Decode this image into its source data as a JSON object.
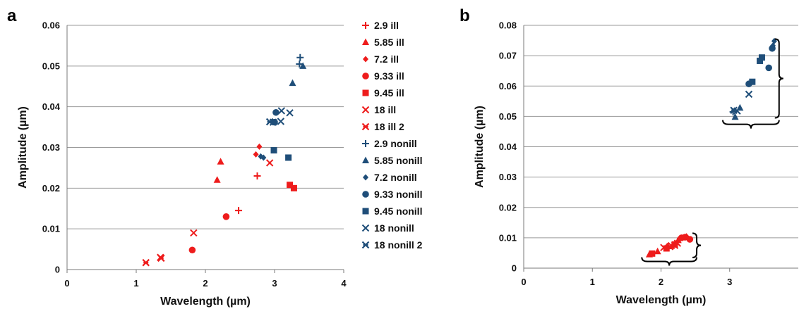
{
  "colors": {
    "ill": "#ee1c1c",
    "nonill": "#1f4e79"
  },
  "chart_data": [
    {
      "panel_label": "a",
      "type": "scatter",
      "xlabel": "Wavelength (µm)",
      "ylabel": "Amplitude (µm)",
      "xlim": [
        0,
        4
      ],
      "ylim": [
        0,
        0.06
      ],
      "xticks": [
        0,
        1,
        2,
        3,
        4
      ],
      "yticks": [
        0,
        0.01,
        0.02,
        0.03,
        0.04,
        0.05,
        0.06
      ],
      "grid": "horizontal",
      "legend": "right",
      "series": [
        {
          "name": "2.9 ill",
          "color": "ill",
          "marker": "plus",
          "points": [
            [
              2.75,
              0.023
            ],
            [
              2.48,
              0.0145
            ]
          ]
        },
        {
          "name": "5.85 ill",
          "color": "ill",
          "marker": "triangle",
          "points": [
            [
              2.22,
              0.0265
            ],
            [
              2.17,
              0.022
            ]
          ]
        },
        {
          "name": "7.2 ill",
          "color": "ill",
          "marker": "diamond",
          "points": [
            [
              2.78,
              0.0302
            ],
            [
              2.73,
              0.0283
            ]
          ]
        },
        {
          "name": "9.33 ill",
          "color": "ill",
          "marker": "circle",
          "points": [
            [
              2.3,
              0.013
            ],
            [
              1.81,
              0.0048
            ]
          ]
        },
        {
          "name": "9.45 ill",
          "color": "ill",
          "marker": "square",
          "points": [
            [
              3.22,
              0.0208
            ],
            [
              3.28,
              0.02
            ]
          ]
        },
        {
          "name": "18 ill",
          "color": "ill",
          "marker": "x",
          "points": [
            [
              2.93,
              0.0262
            ],
            [
              1.83,
              0.009
            ],
            [
              1.35,
              0.003
            ]
          ]
        },
        {
          "name": "18 ill 2",
          "color": "ill",
          "marker": "star",
          "points": [
            [
              1.14,
              0.0017
            ],
            [
              1.36,
              0.0028
            ]
          ]
        },
        {
          "name": "2.9 nonill",
          "color": "nonill",
          "marker": "plus",
          "points": [
            [
              3.37,
              0.0521
            ],
            [
              3.36,
              0.0505
            ]
          ]
        },
        {
          "name": "5.85 nonill",
          "color": "nonill",
          "marker": "triangle",
          "points": [
            [
              3.41,
              0.05
            ],
            [
              3.26,
              0.0458
            ]
          ]
        },
        {
          "name": "7.2 nonill",
          "color": "nonill",
          "marker": "diamond",
          "points": [
            [
              2.8,
              0.0278
            ],
            [
              2.84,
              0.0275
            ]
          ]
        },
        {
          "name": "9.33 nonill",
          "color": "nonill",
          "marker": "circle",
          "points": [
            [
              3.02,
              0.0386
            ],
            [
              3.0,
              0.0362
            ]
          ]
        },
        {
          "name": "9.45 nonill",
          "color": "nonill",
          "marker": "square",
          "points": [
            [
              2.99,
              0.0293
            ],
            [
              3.2,
              0.0275
            ]
          ]
        },
        {
          "name": "18 nonill",
          "color": "nonill",
          "marker": "x",
          "points": [
            [
              3.1,
              0.039
            ],
            [
              3.22,
              0.0385
            ],
            [
              3.09,
              0.0364
            ]
          ]
        },
        {
          "name": "18 nonill 2",
          "color": "nonill",
          "marker": "star",
          "points": [
            [
              2.93,
              0.0363
            ],
            [
              2.98,
              0.0362
            ]
          ]
        }
      ]
    },
    {
      "panel_label": "b",
      "type": "scatter",
      "xlabel": "Wavelength (µm)",
      "ylabel": "Amplitude (µm)",
      "xlim": [
        0,
        4
      ],
      "ylim": [
        0,
        0.08
      ],
      "xticks": [
        0,
        1,
        2,
        3
      ],
      "yticks": [
        0,
        0.01,
        0.02,
        0.03,
        0.04,
        0.05,
        0.06,
        0.07,
        0.08
      ],
      "grid": "horizontal",
      "legend": "none",
      "series": [
        {
          "color": "ill",
          "marker": "triangle",
          "points": [
            [
              1.83,
              0.0045
            ],
            [
              1.95,
              0.0055
            ],
            [
              2.1,
              0.0072
            ],
            [
              2.25,
              0.0092
            ]
          ]
        },
        {
          "color": "ill",
          "marker": "square",
          "points": [
            [
              1.87,
              0.0048
            ],
            [
              2.08,
              0.0065
            ],
            [
              2.2,
              0.0078
            ]
          ]
        },
        {
          "color": "ill",
          "marker": "circle",
          "points": [
            [
              2.3,
              0.01
            ],
            [
              2.35,
              0.0102
            ],
            [
              2.42,
              0.0095
            ]
          ]
        },
        {
          "color": "ill",
          "marker": "diamond",
          "points": [
            [
              2.27,
              0.0098
            ],
            [
              2.37,
              0.0105
            ]
          ]
        },
        {
          "color": "ill",
          "marker": "x",
          "points": [
            [
              2.04,
              0.0068
            ],
            [
              2.15,
              0.0074
            ],
            [
              2.24,
              0.0082
            ]
          ]
        },
        {
          "color": "ill",
          "marker": "star",
          "points": [
            [
              2.13,
              0.0071
            ],
            [
              2.2,
              0.0075
            ]
          ]
        },
        {
          "color": "nonill",
          "marker": "plus",
          "points": [
            [
              3.05,
              0.0515
            ]
          ]
        },
        {
          "color": "nonill",
          "marker": "triangle",
          "points": [
            [
              3.08,
              0.0498
            ],
            [
              3.15,
              0.0528
            ]
          ]
        },
        {
          "color": "nonill",
          "marker": "circle",
          "points": [
            [
              3.28,
              0.0607
            ],
            [
              3.62,
              0.0724
            ],
            [
              3.57,
              0.066
            ]
          ]
        },
        {
          "color": "nonill",
          "marker": "square",
          "points": [
            [
              3.33,
              0.0614
            ],
            [
              3.44,
              0.0683
            ],
            [
              3.47,
              0.0694
            ]
          ]
        },
        {
          "color": "nonill",
          "marker": "diamond",
          "points": [
            [
              3.65,
              0.0748
            ],
            [
              3.63,
              0.0733
            ]
          ]
        },
        {
          "color": "nonill",
          "marker": "x",
          "points": [
            [
              3.28,
              0.0573
            ],
            [
              3.11,
              0.0518
            ]
          ]
        },
        {
          "color": "nonill",
          "marker": "star",
          "points": [
            [
              3.06,
              0.052
            ]
          ]
        }
      ]
    }
  ]
}
